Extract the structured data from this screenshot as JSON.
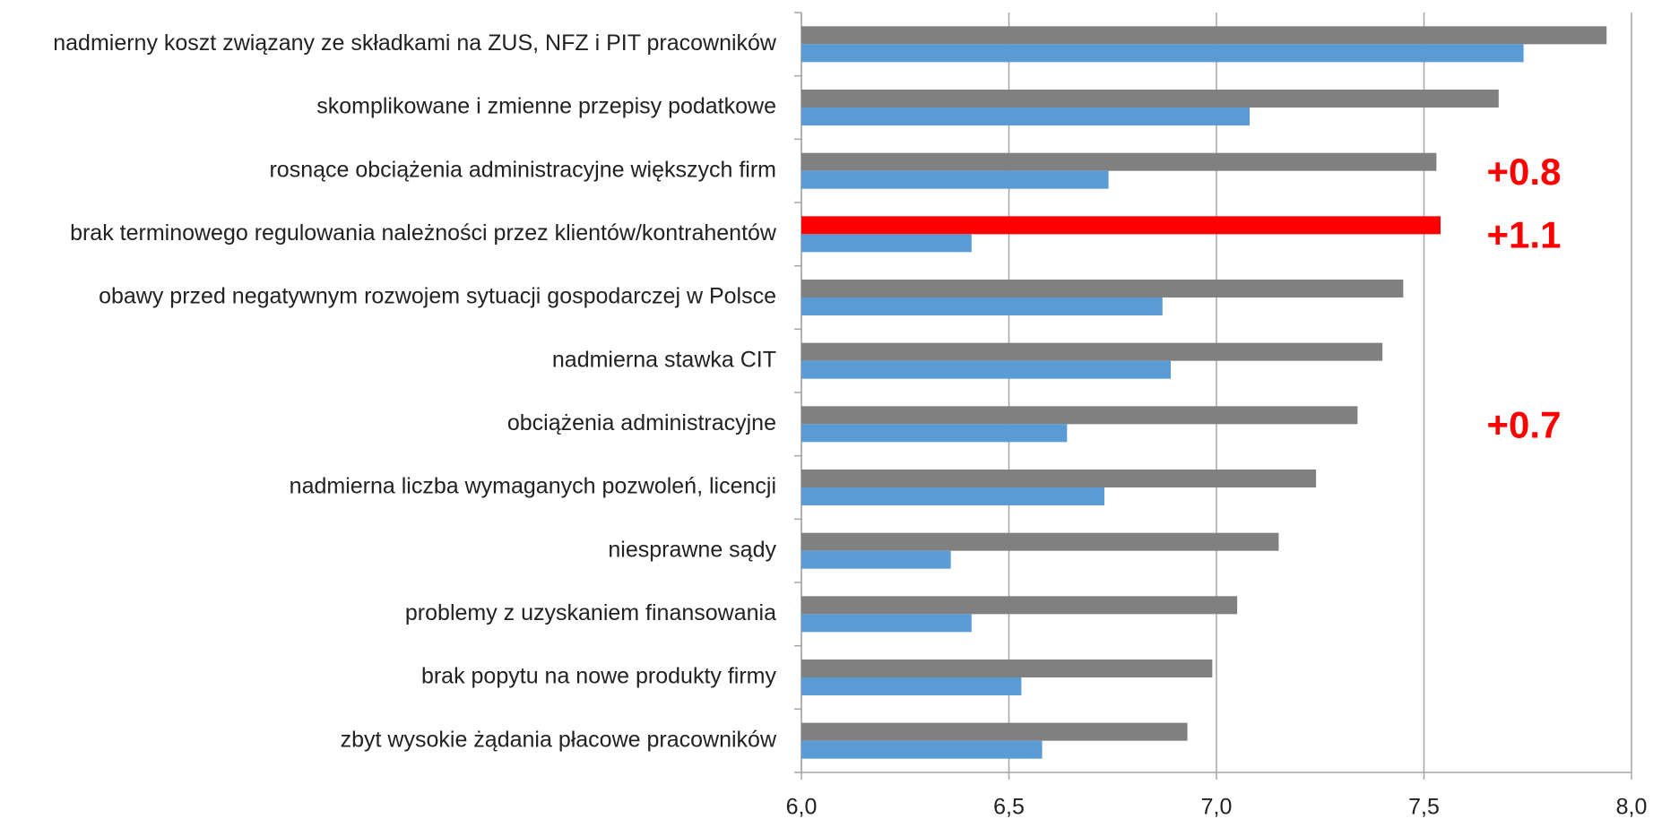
{
  "chart_data": {
    "type": "hbar",
    "categories": [
      "nadmierny koszt związany ze składkami na ZUS, NFZ i PIT pracowników",
      "skomplikowane i zmienne przepisy podatkowe",
      "rosnące obciążenia administracyjne większych firm",
      "brak terminowego regulowania należności przez klientów/kontrahentów",
      "obawy przed negatywnym rozwojem sytuacji gospodarczej w Polsce",
      "nadmierna stawka CIT",
      "obciążenia administracyjne",
      "nadmierna liczba wymaganych pozwoleń, licencji",
      "niesprawne sądy",
      "problemy z uzyskaniem finansowania",
      "brak popytu na nowe produkty firmy",
      "zbyt wysokie żądania płacowe pracowników"
    ],
    "series": [
      {
        "color": "#808080",
        "colors": [
          "#808080",
          "#808080",
          "#808080",
          "#ff0000",
          "#808080",
          "#808080",
          "#808080",
          "#808080",
          "#808080",
          "#808080",
          "#808080",
          "#808080"
        ],
        "values": [
          7.94,
          7.68,
          7.53,
          7.54,
          7.45,
          7.4,
          7.34,
          7.24,
          7.15,
          7.05,
          6.99,
          6.93
        ]
      },
      {
        "color": "#5b9bd5",
        "values": [
          7.74,
          7.08,
          6.74,
          6.41,
          6.87,
          6.89,
          6.64,
          6.73,
          6.36,
          6.41,
          6.53,
          6.58
        ]
      }
    ],
    "xlim": [
      6,
      8
    ],
    "xticks": [
      {
        "value": 6,
        "label": "6,0"
      },
      {
        "value": 6.5,
        "label": "6,5"
      },
      {
        "value": 7,
        "label": "7,0"
      },
      {
        "value": 7.5,
        "label": "7,5"
      },
      {
        "value": 8,
        "label": "8,0"
      }
    ],
    "grid": true,
    "annotations": [
      {
        "text": "+0.8",
        "category": 2
      },
      {
        "text": "+1.1",
        "category": 3
      },
      {
        "text": "+0.7",
        "category": 6
      }
    ]
  }
}
